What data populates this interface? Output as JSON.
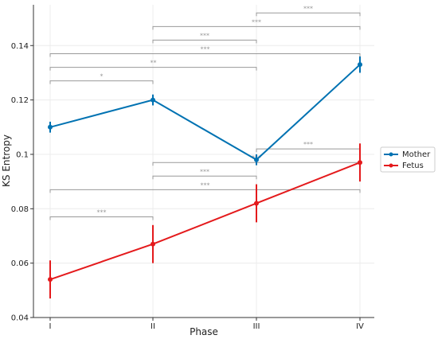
{
  "chart_data": {
    "type": "line",
    "xlabel": "Phase",
    "ylabel": "KS Entropy",
    "categories": [
      "I",
      "II",
      "III",
      "IV"
    ],
    "ylim": [
      0.04,
      0.155
    ],
    "yticks": [
      "0.04",
      "0.06",
      "0.08",
      "0.1",
      "0.12",
      "0.14"
    ],
    "grid": true,
    "legend_position": "right",
    "series": [
      {
        "name": "Mother",
        "color": "#0072B2",
        "values": [
          0.11,
          0.12,
          0.098,
          0.133
        ],
        "errors": [
          0.002,
          0.002,
          0.002,
          0.003
        ]
      },
      {
        "name": "Fetus",
        "color": "#E41A1C",
        "values": [
          0.054,
          0.067,
          0.082,
          0.097
        ],
        "errors": [
          0.007,
          0.007,
          0.007,
          0.007
        ]
      }
    ],
    "significance": [
      {
        "series": "Mother",
        "from": 0,
        "to": 1,
        "y": 0.127,
        "label": "*"
      },
      {
        "series": "Mother",
        "from": 0,
        "to": 2,
        "y": 0.132,
        "label": "**"
      },
      {
        "series": "Mother",
        "from": 0,
        "to": 3,
        "y": 0.137,
        "label": "***"
      },
      {
        "series": "Mother",
        "from": 1,
        "to": 2,
        "y": 0.142,
        "label": "***"
      },
      {
        "series": "Mother",
        "from": 1,
        "to": 3,
        "y": 0.147,
        "label": "***"
      },
      {
        "series": "Mother",
        "from": 2,
        "to": 3,
        "y": 0.152,
        "label": "***"
      },
      {
        "series": "Fetus",
        "from": 0,
        "to": 1,
        "y": 0.077,
        "label": "***"
      },
      {
        "series": "Fetus",
        "from": 0,
        "to": 3,
        "y": 0.087,
        "label": "***"
      },
      {
        "series": "Fetus",
        "from": 1,
        "to": 2,
        "y": 0.092,
        "label": "***"
      },
      {
        "series": "Fetus",
        "from": 1,
        "to": 3,
        "y": 0.097,
        "label": "***"
      },
      {
        "series": "Fetus",
        "from": 2,
        "to": 3,
        "y": 0.102,
        "label": "***"
      }
    ]
  }
}
